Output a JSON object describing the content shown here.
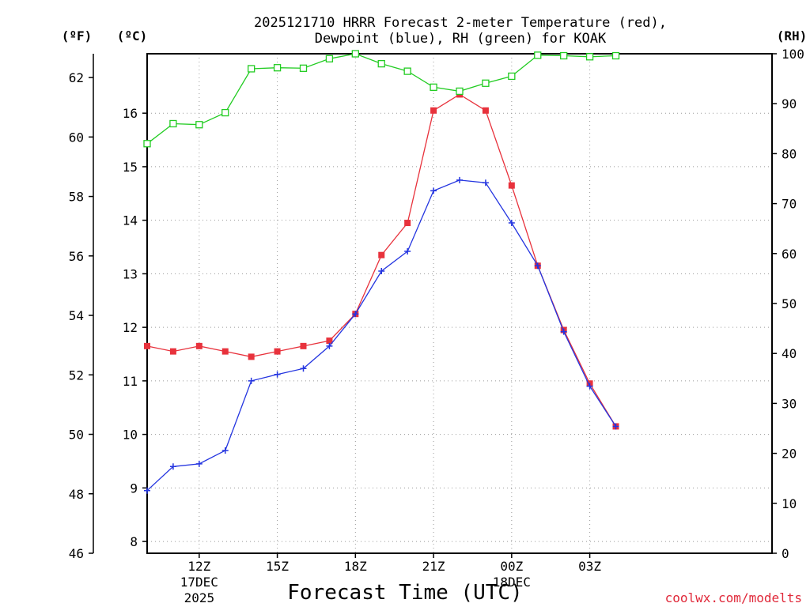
{
  "chart_data": {
    "type": "line",
    "title_lines": [
      "2025121710 HRRR Forecast 2-meter Temperature (red),",
      "Dewpoint (blue), RH (green) for KOAK"
    ],
    "xlabel": "Forecast Time (UTC)",
    "credit": "coolwx.com/modelts",
    "x_range": [
      10,
      34
    ],
    "x_ticks": [
      {
        "x": 12,
        "lines": [
          "12Z",
          "17DEC",
          "2025"
        ]
      },
      {
        "x": 15,
        "lines": [
          "15Z"
        ]
      },
      {
        "x": 18,
        "lines": [
          "18Z"
        ]
      },
      {
        "x": 21,
        "lines": [
          "21Z"
        ]
      },
      {
        "x": 24,
        "lines": [
          "00Z",
          "18DEC"
        ]
      },
      {
        "x": 27,
        "lines": [
          "03Z"
        ]
      }
    ],
    "axes": {
      "fahrenheit": {
        "unit_label": "(ºF)",
        "range": [
          46,
          62.8
        ],
        "ticks": [
          46,
          48,
          50,
          52,
          54,
          56,
          58,
          60,
          62
        ]
      },
      "celsius": {
        "unit_label": "(ºC)",
        "range": [
          7.78,
          17.11
        ],
        "ticks": [
          8,
          9,
          10,
          11,
          12,
          13,
          14,
          15,
          16
        ]
      },
      "rh": {
        "unit_label": "(RH)",
        "range": [
          0,
          100
        ],
        "ticks": [
          0,
          10,
          20,
          30,
          40,
          50,
          60,
          70,
          80,
          90,
          100
        ]
      }
    },
    "x": [
      10,
      11,
      12,
      13,
      14,
      15,
      16,
      17,
      18,
      19,
      20,
      21,
      22,
      23,
      24,
      25,
      26,
      27,
      28
    ],
    "series": [
      {
        "name": "Temperature",
        "axis": "celsius",
        "color": "#e8323c",
        "marker": "filled-square",
        "values": [
          11.65,
          11.55,
          11.65,
          11.55,
          11.45,
          11.55,
          11.65,
          11.75,
          12.25,
          13.35,
          13.95,
          16.05,
          16.35,
          16.05,
          14.65,
          13.15,
          11.95,
          10.95,
          10.15
        ]
      },
      {
        "name": "Dewpoint",
        "axis": "celsius",
        "color": "#2435e0",
        "marker": "plus",
        "values": [
          8.95,
          9.4,
          9.45,
          9.7,
          11.0,
          11.12,
          11.23,
          11.65,
          12.25,
          13.05,
          13.42,
          14.55,
          14.75,
          14.7,
          13.95,
          13.15,
          11.92,
          10.9,
          10.15
        ]
      },
      {
        "name": "RH",
        "axis": "rh",
        "color": "#22cc22",
        "marker": "open-square",
        "values": [
          82.0,
          86.0,
          85.8,
          88.2,
          97.0,
          97.2,
          97.1,
          99.0,
          100.0,
          98.0,
          96.5,
          93.3,
          92.5,
          94.1,
          95.5,
          99.7,
          99.6,
          99.4,
          99.6
        ]
      }
    ]
  }
}
